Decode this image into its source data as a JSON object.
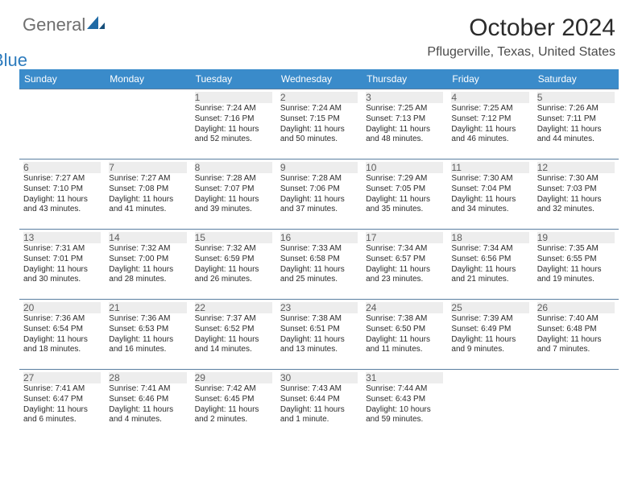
{
  "logo": {
    "part1": "General",
    "part2": "Blue"
  },
  "title": "October 2024",
  "location": "Pflugerville, Texas, United States",
  "colors": {
    "header_bg": "#3a8bca",
    "week_border": "#5a7ea0",
    "daynum_bg": "#ededed"
  },
  "days_of_week": [
    "Sunday",
    "Monday",
    "Tuesday",
    "Wednesday",
    "Thursday",
    "Friday",
    "Saturday"
  ],
  "weeks": [
    [
      null,
      null,
      {
        "n": "1",
        "sr": "7:24 AM",
        "ss": "7:16 PM",
        "dl": "11 hours and 52 minutes."
      },
      {
        "n": "2",
        "sr": "7:24 AM",
        "ss": "7:15 PM",
        "dl": "11 hours and 50 minutes."
      },
      {
        "n": "3",
        "sr": "7:25 AM",
        "ss": "7:13 PM",
        "dl": "11 hours and 48 minutes."
      },
      {
        "n": "4",
        "sr": "7:25 AM",
        "ss": "7:12 PM",
        "dl": "11 hours and 46 minutes."
      },
      {
        "n": "5",
        "sr": "7:26 AM",
        "ss": "7:11 PM",
        "dl": "11 hours and 44 minutes."
      }
    ],
    [
      {
        "n": "6",
        "sr": "7:27 AM",
        "ss": "7:10 PM",
        "dl": "11 hours and 43 minutes."
      },
      {
        "n": "7",
        "sr": "7:27 AM",
        "ss": "7:08 PM",
        "dl": "11 hours and 41 minutes."
      },
      {
        "n": "8",
        "sr": "7:28 AM",
        "ss": "7:07 PM",
        "dl": "11 hours and 39 minutes."
      },
      {
        "n": "9",
        "sr": "7:28 AM",
        "ss": "7:06 PM",
        "dl": "11 hours and 37 minutes."
      },
      {
        "n": "10",
        "sr": "7:29 AM",
        "ss": "7:05 PM",
        "dl": "11 hours and 35 minutes."
      },
      {
        "n": "11",
        "sr": "7:30 AM",
        "ss": "7:04 PM",
        "dl": "11 hours and 34 minutes."
      },
      {
        "n": "12",
        "sr": "7:30 AM",
        "ss": "7:03 PM",
        "dl": "11 hours and 32 minutes."
      }
    ],
    [
      {
        "n": "13",
        "sr": "7:31 AM",
        "ss": "7:01 PM",
        "dl": "11 hours and 30 minutes."
      },
      {
        "n": "14",
        "sr": "7:32 AM",
        "ss": "7:00 PM",
        "dl": "11 hours and 28 minutes."
      },
      {
        "n": "15",
        "sr": "7:32 AM",
        "ss": "6:59 PM",
        "dl": "11 hours and 26 minutes."
      },
      {
        "n": "16",
        "sr": "7:33 AM",
        "ss": "6:58 PM",
        "dl": "11 hours and 25 minutes."
      },
      {
        "n": "17",
        "sr": "7:34 AM",
        "ss": "6:57 PM",
        "dl": "11 hours and 23 minutes."
      },
      {
        "n": "18",
        "sr": "7:34 AM",
        "ss": "6:56 PM",
        "dl": "11 hours and 21 minutes."
      },
      {
        "n": "19",
        "sr": "7:35 AM",
        "ss": "6:55 PM",
        "dl": "11 hours and 19 minutes."
      }
    ],
    [
      {
        "n": "20",
        "sr": "7:36 AM",
        "ss": "6:54 PM",
        "dl": "11 hours and 18 minutes."
      },
      {
        "n": "21",
        "sr": "7:36 AM",
        "ss": "6:53 PM",
        "dl": "11 hours and 16 minutes."
      },
      {
        "n": "22",
        "sr": "7:37 AM",
        "ss": "6:52 PM",
        "dl": "11 hours and 14 minutes."
      },
      {
        "n": "23",
        "sr": "7:38 AM",
        "ss": "6:51 PM",
        "dl": "11 hours and 13 minutes."
      },
      {
        "n": "24",
        "sr": "7:38 AM",
        "ss": "6:50 PM",
        "dl": "11 hours and 11 minutes."
      },
      {
        "n": "25",
        "sr": "7:39 AM",
        "ss": "6:49 PM",
        "dl": "11 hours and 9 minutes."
      },
      {
        "n": "26",
        "sr": "7:40 AM",
        "ss": "6:48 PM",
        "dl": "11 hours and 7 minutes."
      }
    ],
    [
      {
        "n": "27",
        "sr": "7:41 AM",
        "ss": "6:47 PM",
        "dl": "11 hours and 6 minutes."
      },
      {
        "n": "28",
        "sr": "7:41 AM",
        "ss": "6:46 PM",
        "dl": "11 hours and 4 minutes."
      },
      {
        "n": "29",
        "sr": "7:42 AM",
        "ss": "6:45 PM",
        "dl": "11 hours and 2 minutes."
      },
      {
        "n": "30",
        "sr": "7:43 AM",
        "ss": "6:44 PM",
        "dl": "11 hours and 1 minute."
      },
      {
        "n": "31",
        "sr": "7:44 AM",
        "ss": "6:43 PM",
        "dl": "10 hours and 59 minutes."
      },
      null,
      null
    ]
  ],
  "labels": {
    "sunrise": "Sunrise: ",
    "sunset": "Sunset: ",
    "daylight": "Daylight: "
  }
}
